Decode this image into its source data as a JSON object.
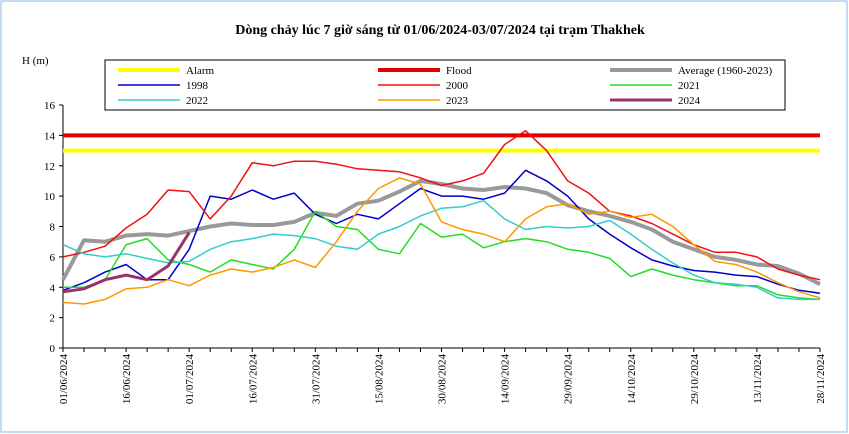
{
  "chart_data": {
    "type": "line",
    "title": "Dòng chảy lúc 7 giờ sáng từ 01/06/2024-03/07/2024 tại trạm Thakhek",
    "y_label": "H (m)",
    "categories": [
      "01/06/2024",
      null,
      null,
      "16/06/2024",
      null,
      null,
      "01/07/2024",
      null,
      null,
      "16/07/2024",
      null,
      null,
      "31/07/2024",
      null,
      null,
      "15/08/2024",
      null,
      null,
      "30/08/2024",
      null,
      null,
      "14/09/2024",
      null,
      null,
      "29/09/2024",
      null,
      null,
      "14/10/2024",
      null,
      null,
      "29/10/2024",
      null,
      null,
      "13/11/2024",
      null,
      null,
      "28/11/2024"
    ],
    "ylim": [
      0,
      16
    ],
    "yticks": [
      0,
      2,
      4,
      6,
      8,
      10,
      12,
      14,
      16
    ],
    "series": [
      {
        "name": "Alarm",
        "color": "#ffff00",
        "line_width": 4,
        "values": [
          13,
          13,
          13,
          13,
          13,
          13,
          13,
          13,
          13,
          13,
          13,
          13,
          13,
          13,
          13,
          13,
          13,
          13,
          13,
          13,
          13,
          13,
          13,
          13,
          13,
          13,
          13,
          13,
          13,
          13,
          13,
          13,
          13,
          13,
          13,
          13,
          13
        ]
      },
      {
        "name": "Flood",
        "color": "#e00000",
        "line_width": 4,
        "values": [
          14,
          14,
          14,
          14,
          14,
          14,
          14,
          14,
          14,
          14,
          14,
          14,
          14,
          14,
          14,
          14,
          14,
          14,
          14,
          14,
          14,
          14,
          14,
          14,
          14,
          14,
          14,
          14,
          14,
          14,
          14,
          14,
          14,
          14,
          14,
          14,
          14
        ]
      },
      {
        "name": "Average (1960-2023)",
        "color": "#999999",
        "line_width": 4,
        "values": [
          4.5,
          7.1,
          7.0,
          7.4,
          7.5,
          7.4,
          7.7,
          8.0,
          8.2,
          8.1,
          8.1,
          8.3,
          8.9,
          8.7,
          9.5,
          9.7,
          10.3,
          11.0,
          10.8,
          10.5,
          10.4,
          10.6,
          10.5,
          10.2,
          9.4,
          9.0,
          8.7,
          8.3,
          7.8,
          7.0,
          6.5,
          6.0,
          5.8,
          5.5,
          5.4,
          4.9,
          4.2
        ]
      },
      {
        "name": "1998",
        "color": "#0000cc",
        "line_width": 1.5,
        "values": [
          3.8,
          4.3,
          5.0,
          5.5,
          4.5,
          4.5,
          6.5,
          10.0,
          9.8,
          10.4,
          9.8,
          10.2,
          8.8,
          8.2,
          8.8,
          8.5,
          9.5,
          10.5,
          10.0,
          10.0,
          9.8,
          10.2,
          11.7,
          11.0,
          10.0,
          8.5,
          7.5,
          6.6,
          5.8,
          5.4,
          5.1,
          5.0,
          4.8,
          4.7,
          4.2,
          3.8,
          3.6
        ]
      },
      {
        "name": "2000",
        "color": "#ee1111",
        "line_width": 1.5,
        "values": [
          6.0,
          6.3,
          6.7,
          7.9,
          8.8,
          10.4,
          10.3,
          8.5,
          10.0,
          12.2,
          12.0,
          12.3,
          12.3,
          12.1,
          11.8,
          11.7,
          11.6,
          11.2,
          10.7,
          11.0,
          11.5,
          13.4,
          14.3,
          13.0,
          11.0,
          10.2,
          9.0,
          8.7,
          8.2,
          7.5,
          6.8,
          6.3,
          6.3,
          6.0,
          5.2,
          4.8,
          4.5
        ]
      },
      {
        "name": "2021",
        "color": "#22dd22",
        "line_width": 1.5,
        "values": [
          4.0,
          4.0,
          4.5,
          6.8,
          7.2,
          5.8,
          5.5,
          5.0,
          5.8,
          5.5,
          5.2,
          6.5,
          9.0,
          8.0,
          7.8,
          6.5,
          6.2,
          8.2,
          7.3,
          7.5,
          6.6,
          7.0,
          7.2,
          7.0,
          6.5,
          6.3,
          5.9,
          4.7,
          5.2,
          4.8,
          4.5,
          4.3,
          4.1,
          4.1,
          3.5,
          3.3,
          3.2
        ]
      },
      {
        "name": "2022",
        "color": "#33cccc",
        "line_width": 1.5,
        "values": [
          6.8,
          6.2,
          6.0,
          6.2,
          5.9,
          5.6,
          5.7,
          6.5,
          7.0,
          7.2,
          7.5,
          7.4,
          7.2,
          6.7,
          6.5,
          7.5,
          8.0,
          8.7,
          9.2,
          9.3,
          9.7,
          8.5,
          7.8,
          8.0,
          7.9,
          8.0,
          8.4,
          7.5,
          6.5,
          5.6,
          4.8,
          4.3,
          4.2,
          4.0,
          3.3,
          3.2,
          3.2
        ]
      },
      {
        "name": "2023",
        "color": "#ff9900",
        "line_width": 1.5,
        "values": [
          3.0,
          2.9,
          3.2,
          3.9,
          4.0,
          4.5,
          4.1,
          4.8,
          5.2,
          5.0,
          5.3,
          5.8,
          5.3,
          7.0,
          9.0,
          10.5,
          11.2,
          10.8,
          8.3,
          7.8,
          7.5,
          7.0,
          8.5,
          9.3,
          9.5,
          8.8,
          9.0,
          8.6,
          8.8,
          8.0,
          6.8,
          5.7,
          5.5,
          5.0,
          4.3,
          3.7,
          3.3
        ]
      },
      {
        "name": "2024",
        "color": "#993366",
        "line_width": 3,
        "values": [
          3.7,
          3.9,
          4.5,
          4.8,
          4.5,
          5.4,
          7.6,
          null,
          null,
          null,
          null,
          null,
          null,
          null,
          null,
          null,
          null,
          null,
          null,
          null,
          null,
          null,
          null,
          null,
          null,
          null,
          null,
          null,
          null,
          null,
          null,
          null,
          null,
          null,
          null,
          null,
          null
        ]
      }
    ]
  }
}
